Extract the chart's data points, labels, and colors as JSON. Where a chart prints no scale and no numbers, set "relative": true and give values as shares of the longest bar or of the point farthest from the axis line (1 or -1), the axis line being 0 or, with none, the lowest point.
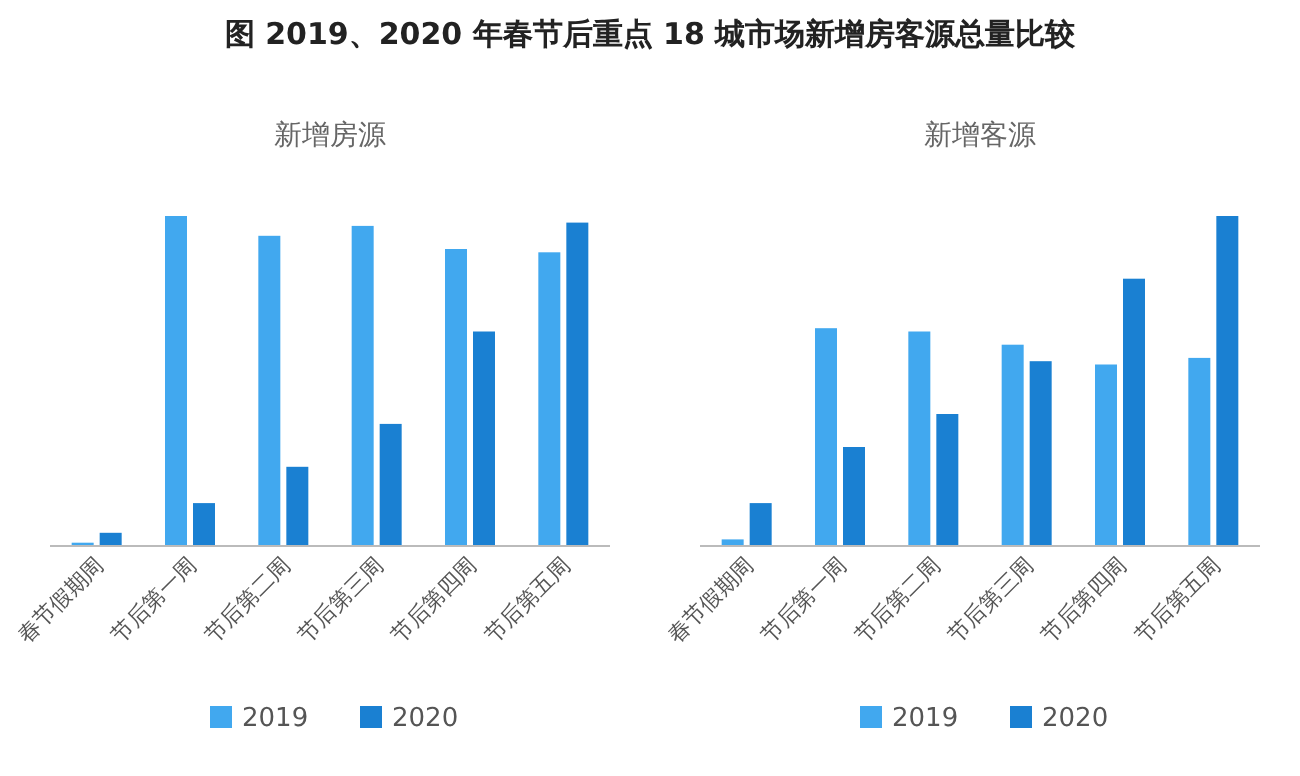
{
  "chart_data": [
    {
      "type": "bar",
      "title": "新增房源",
      "annotations": [
        "图  2019、2020 年春节后重点 18 城市场新增房客源总量比较"
      ],
      "relative": true,
      "legend": "bottom",
      "categories": [
        "春节假期周",
        "节后第一周",
        "节后第二周",
        "节后第三周",
        "节后第四周",
        "节后第五周"
      ],
      "series": [
        {
          "name": "2019",
          "color": "#41a8ef",
          "values": [
            0.01,
            1.0,
            0.94,
            0.97,
            0.9,
            0.89
          ]
        },
        {
          "name": "2020",
          "color": "#1a80d2",
          "values": [
            0.04,
            0.13,
            0.24,
            0.37,
            0.65,
            0.98
          ]
        }
      ]
    },
    {
      "type": "bar",
      "title": "新增客源",
      "relative": true,
      "legend": "bottom",
      "categories": [
        "春节假期周",
        "节后第一周",
        "节后第二周",
        "节后第三周",
        "节后第四周",
        "节后第五周"
      ],
      "series": [
        {
          "name": "2019",
          "color": "#41a8ef",
          "values": [
            0.02,
            0.66,
            0.65,
            0.61,
            0.55,
            0.57
          ]
        },
        {
          "name": "2020",
          "color": "#1a80d2",
          "values": [
            0.13,
            0.3,
            0.4,
            0.56,
            0.81,
            1.0
          ]
        }
      ]
    }
  ]
}
